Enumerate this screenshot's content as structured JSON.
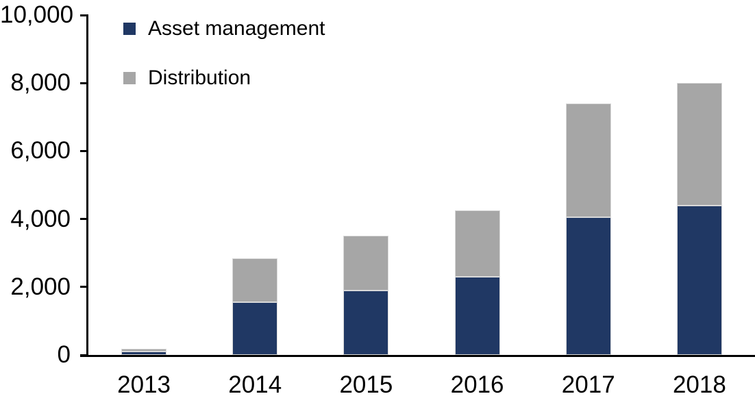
{
  "chart_data": {
    "type": "bar",
    "stacked": true,
    "title": "",
    "xlabel": "",
    "ylabel": "",
    "categories": [
      "2013",
      "2014",
      "2015",
      "2016",
      "2017",
      "2018"
    ],
    "series": [
      {
        "name": "Asset management",
        "color": "#203864",
        "values": [
          100,
          1550,
          1900,
          2300,
          4050,
          4400
        ]
      },
      {
        "name": "Distribution",
        "color": "#A6A6A6",
        "values": [
          90,
          1300,
          1600,
          1950,
          3350,
          3600
        ]
      }
    ],
    "totals": [
      190,
      2850,
      3500,
      4250,
      7400,
      8000
    ],
    "ylim": [
      0,
      10000
    ],
    "ytick_step": 2000,
    "ytick_labels": [
      "0",
      "2,000",
      "4,000",
      "6,000",
      "8,000",
      "10,000"
    ],
    "grid": false,
    "legend_position": "top-left-inside",
    "axis_color": "#000000",
    "background_color": "#ffffff"
  }
}
